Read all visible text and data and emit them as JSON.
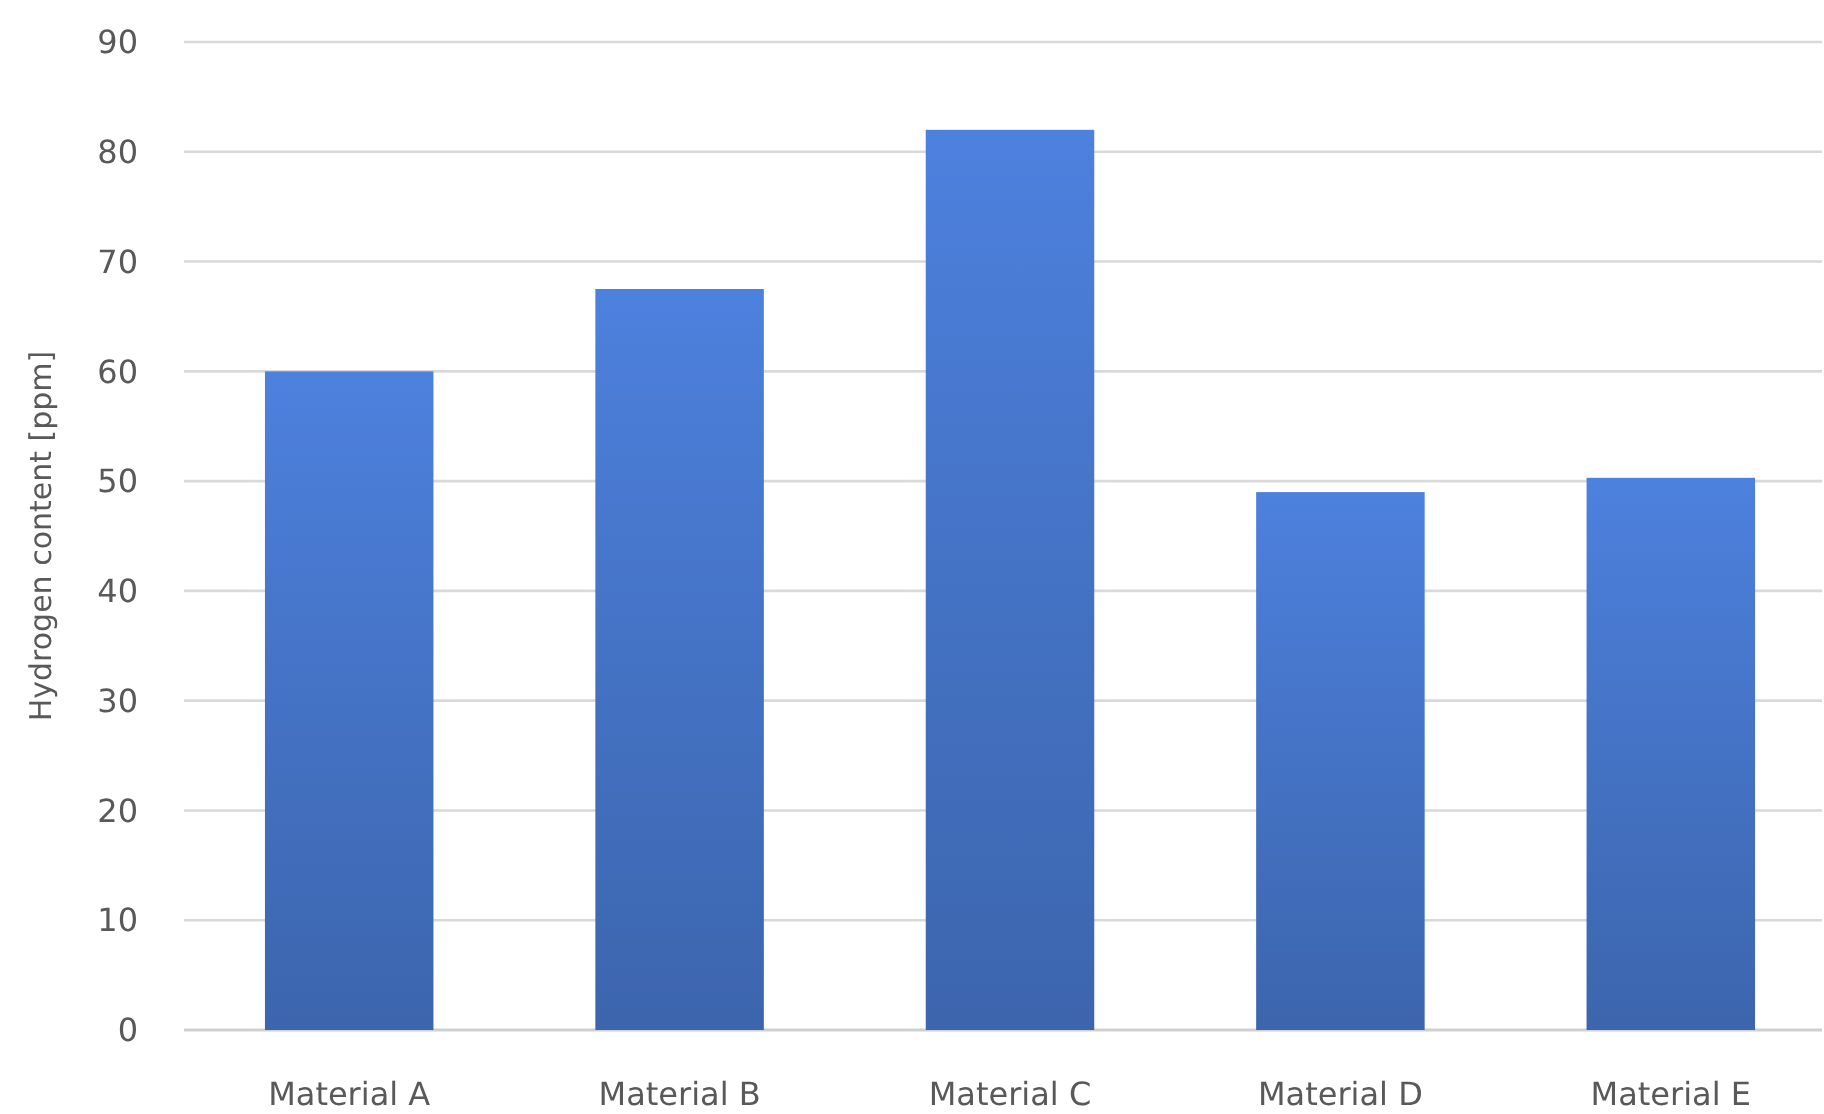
{
  "chart_data": {
    "type": "bar",
    "ylabel": "Hydrogen content [ppm]",
    "categories": [
      "Material A",
      "Material B",
      "Material C",
      "Material D",
      "Material E"
    ],
    "values": [
      60,
      67.5,
      82,
      49,
      50.3
    ],
    "color": "#4472c4",
    "ylim": [
      0,
      90
    ],
    "yticks": [
      0,
      10,
      20,
      30,
      40,
      50,
      60,
      70,
      80,
      90
    ],
    "grid": "y"
  }
}
